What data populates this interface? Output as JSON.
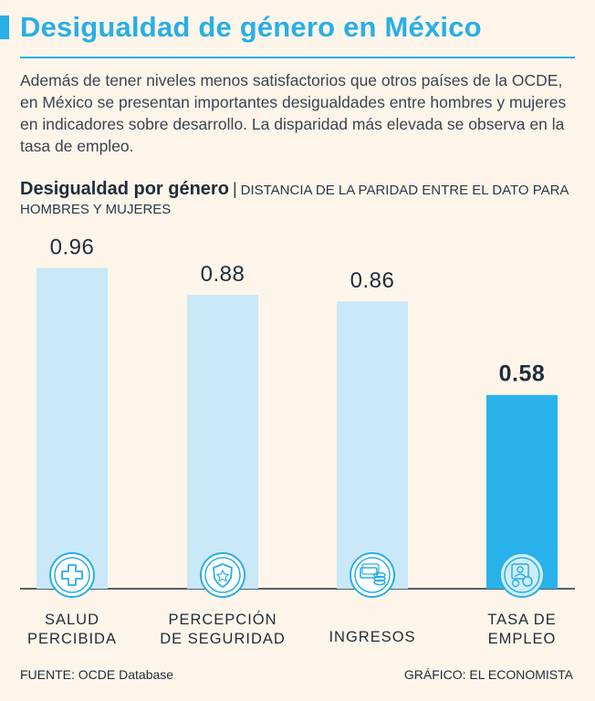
{
  "header": {
    "title": "Desigualdad de género en México",
    "intro": "Además de tener niveles menos satisfactorios que otros países de la OCDE, en México se presentan importantes desigualdades entre hombres y mujeres en indicadores sobre desarrollo. La disparidad más elevada se observa en la tasa de empleo."
  },
  "subhead": {
    "bold": "Desigualdad por género",
    "separator": "|",
    "rest": "DISTANCIA DE LA PARIDAD ENTRE EL DATO PARA HOMBRES Y MUJERES"
  },
  "footer": {
    "source": "FUENTE: OCDE Database",
    "credit": "GRÁFICO: EL ECONOMISTA"
  },
  "colors": {
    "accent": "#29aee6",
    "bar_light": "#c9e8f8",
    "bar_highlight": "#29b2ea",
    "background": "#fdf5ea"
  },
  "chart_data": {
    "type": "bar",
    "categories": [
      [
        "SALUD",
        "PERCIBIDA"
      ],
      [
        "PERCEPCIÓN",
        "DE SEGURIDAD"
      ],
      [
        "INGRESOS"
      ],
      [
        "TASA DE",
        "EMPLEO"
      ]
    ],
    "values": [
      0.96,
      0.88,
      0.86,
      0.58
    ],
    "labels": [
      "0.96",
      "0.88",
      "0.86",
      "0.58"
    ],
    "icons": [
      "health-cross-icon",
      "security-shield-icon",
      "money-coins-icon",
      "employment-people-icon"
    ],
    "highlight_index": 3,
    "ylim": [
      0,
      1
    ],
    "grid": false
  }
}
